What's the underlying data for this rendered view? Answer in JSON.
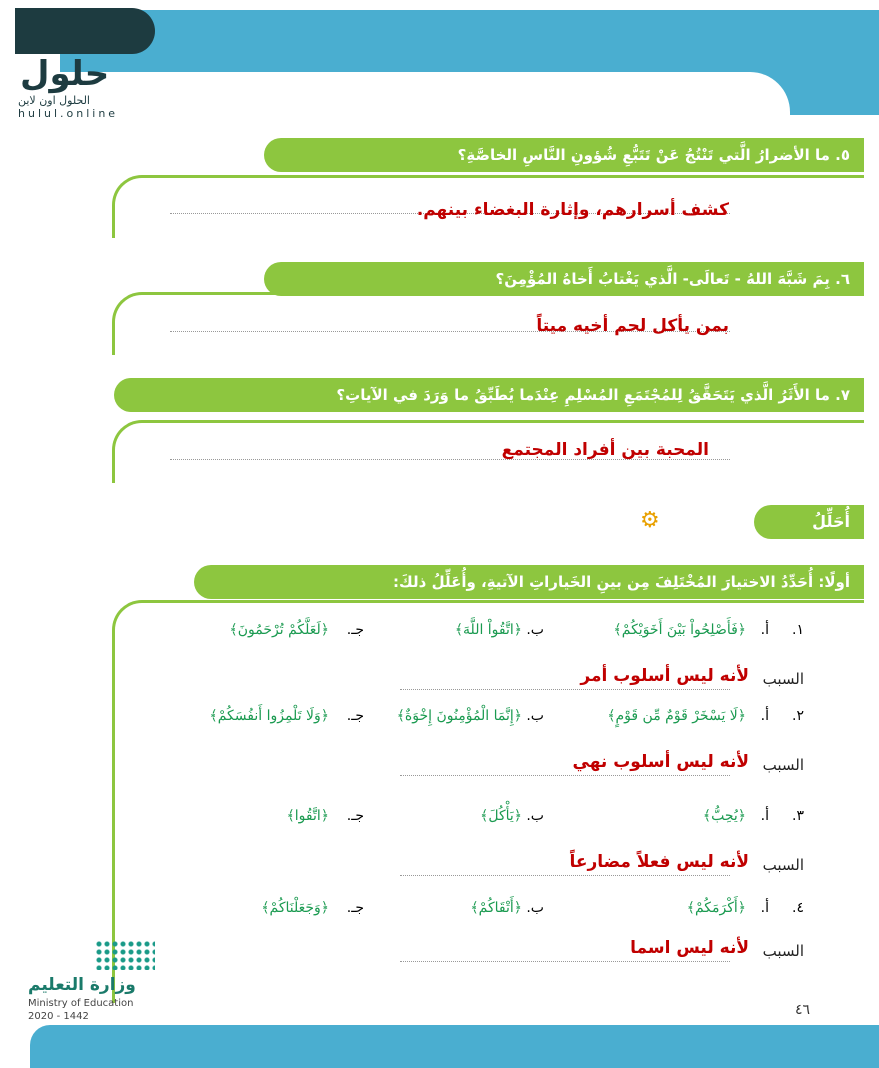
{
  "logo": {
    "text": "حلول",
    "sub": "الحلول اون لاين",
    "url": "hulul.online"
  },
  "questions": [
    {
      "q": "٥. ما الأضرارُ الَّتي تَنْتُجُ عَنْ تَتَبُّعِ شُؤونِ النَّاسِ الخاصَّةِ؟",
      "a": "كشف أسرارهم، وإثارة البغضاء بينهم."
    },
    {
      "q": "٦. بِمَ شَبَّهَ اللهُ - تَعالَى- الَّذي يَغْتابُ أَخاهُ المُؤْمِنَ؟",
      "a": "بمن يأكل لحم أخيه ميتاً"
    },
    {
      "q": "٧. ما الأَثَرُ الَّذي يَتَحَقَّقُ لِلمُجْتَمَعِ المُسْلِمِ عِنْدَما يُطَبِّقُ ما وَرَدَ في الآياتِ؟",
      "a": "المحبة بين أفراد المجتمع"
    }
  ],
  "section": {
    "title": "أُحَلِّلُ",
    "icon": "magnifier-gear-icon",
    "instruction": "أولًا: أُحَدِّدُ الاختيارَ المُخْتَلِفَ مِن بينِ الخَياراتِ الآتيةِ، وأُعَلِّلُ ذلكَ:"
  },
  "reason_label": "السبب",
  "items": [
    {
      "n": "١.",
      "a": "﴿فَأَصْلِحُواْ بَيْنَ أَخَوَيْكُمْ﴾",
      "b": "﴿اتَّقُواْ اللَّهَ﴾",
      "c": "﴿لَعَلَّكُمْ تُرْحَمُونَ﴾",
      "reason": "لأنه ليس أسلوب أمر"
    },
    {
      "n": "٢.",
      "a": "﴿لَا يَسْخَرْ قَوْمٌ مِّن قَوْمٍ﴾",
      "b": "﴿إِنَّمَا الْمُؤْمِنُونَ إِخْوَةٌ﴾",
      "c": "﴿وَلَا تَلْمِزُوا أَنفُسَكُمْ﴾",
      "reason": "لأنه ليس أسلوب نهي"
    },
    {
      "n": "٣.",
      "a": "﴿يُحِبُّ﴾",
      "b": "﴿يَأْكُلَ﴾",
      "c": "﴿اتَّقُوا﴾",
      "reason": "لأنه ليس فعلاً مضارعاً"
    },
    {
      "n": "٤.",
      "a": "﴿أَكْرَمَكُمْ﴾",
      "b": "﴿أَتْقَاكُمْ﴾",
      "c": "﴿وَجَعَلْنَاكُمْ﴾",
      "reason": "لأنه ليس اسما"
    }
  ],
  "labels": {
    "a": "أ.",
    "b": "ب.",
    "c": "جـ."
  },
  "ministry": {
    "ar": "وزارة التعليم",
    "en": "Ministry of Education",
    "year": "2020 - 1442"
  },
  "page_number": "٤٦",
  "colors": {
    "blue": "#4aaed0",
    "green": "#8dc63f",
    "answer": "#c00000",
    "verse": "#1a9a50"
  }
}
